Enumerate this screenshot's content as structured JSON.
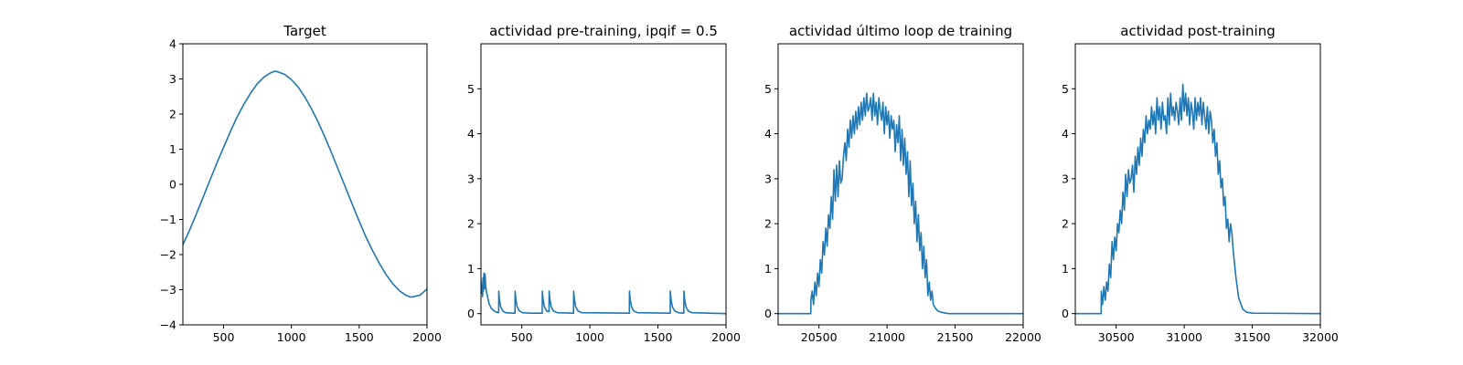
{
  "chart_data": [
    {
      "type": "line",
      "title": "Target",
      "xlim": [
        200,
        2000
      ],
      "ylim": [
        -4,
        4
      ],
      "xticks": [
        500,
        1000,
        1500,
        2000
      ],
      "yticks": [
        -4,
        -3,
        -2,
        -1,
        0,
        1,
        2,
        3,
        4
      ],
      "series": [
        {
          "color": "#1f77b4",
          "x": [
            200,
            250,
            300,
            350,
            400,
            450,
            500,
            550,
            600,
            650,
            700,
            750,
            800,
            850,
            880,
            900,
            950,
            1000,
            1050,
            1100,
            1150,
            1200,
            1250,
            1300,
            1350,
            1400,
            1450,
            1500,
            1550,
            1600,
            1650,
            1700,
            1750,
            1800,
            1850,
            1880,
            1900,
            1950,
            2000
          ],
          "y": [
            -1.72,
            -1.3,
            -0.84,
            -0.36,
            0.12,
            0.6,
            1.05,
            1.5,
            1.92,
            2.28,
            2.6,
            2.87,
            3.06,
            3.18,
            3.22,
            3.2,
            3.13,
            2.98,
            2.77,
            2.48,
            2.14,
            1.75,
            1.32,
            0.86,
            0.38,
            -0.1,
            -0.58,
            -1.05,
            -1.5,
            -1.9,
            -2.26,
            -2.58,
            -2.84,
            -3.04,
            -3.17,
            -3.21,
            -3.2,
            -3.15,
            -2.98
          ]
        }
      ]
    },
    {
      "type": "line",
      "title": "actividad pre-training, ipqif = 0.5",
      "xlim": [
        200,
        2000
      ],
      "ylim": [
        -0.25,
        6
      ],
      "xticks": [
        500,
        1000,
        1500,
        2000
      ],
      "yticks": [
        0,
        1,
        2,
        3,
        4,
        5
      ],
      "series": [
        {
          "color": "#1f77b4",
          "x": [
            200,
            205,
            208,
            212,
            215,
            218,
            222,
            226,
            230,
            235,
            240,
            250,
            260,
            275,
            300,
            330,
            331,
            335,
            345,
            360,
            380,
            430,
            450,
            451,
            456,
            466,
            482,
            505,
            560,
            650,
            651,
            656,
            666,
            682,
            700,
            701,
            706,
            716,
            732,
            760,
            880,
            881,
            886,
            896,
            912,
            940,
            1290,
            1291,
            1296,
            1306,
            1322,
            1350,
            1590,
            1591,
            1596,
            1606,
            1622,
            1650,
            1690,
            1691,
            1696,
            1706,
            1722,
            1750,
            2000
          ],
          "y": [
            0.75,
            0.45,
            0.65,
            0.38,
            0.8,
            0.5,
            0.9,
            0.55,
            0.88,
            0.6,
            0.5,
            0.35,
            0.22,
            0.12,
            0.05,
            0.02,
            0.5,
            0.32,
            0.15,
            0.06,
            0.02,
            0.01,
            0.01,
            0.5,
            0.32,
            0.15,
            0.06,
            0.02,
            0.01,
            0.01,
            0.5,
            0.32,
            0.15,
            0.06,
            0.04,
            0.5,
            0.32,
            0.15,
            0.06,
            0.02,
            0.01,
            0.5,
            0.32,
            0.15,
            0.06,
            0.02,
            0.01,
            0.5,
            0.32,
            0.15,
            0.06,
            0.02,
            0.01,
            0.5,
            0.32,
            0.15,
            0.06,
            0.02,
            0.01,
            0.5,
            0.32,
            0.15,
            0.06,
            0.02,
            0.0
          ]
        }
      ]
    },
    {
      "type": "line",
      "title": "actividad último loop de training",
      "xlim": [
        20200,
        22000
      ],
      "ylim": [
        -0.25,
        6
      ],
      "xticks": [
        20500,
        21000,
        21500,
        22000
      ],
      "yticks": [
        0,
        1,
        2,
        3,
        4,
        5
      ],
      "series": [
        {
          "color": "#1f77b4",
          "x": [
            20200,
            20440,
            20441,
            20450,
            20460,
            20470,
            20480,
            20490,
            20500,
            20510,
            20520,
            20530,
            20540,
            20550,
            20560,
            20570,
            20580,
            20590,
            20600,
            20610,
            20620,
            20630,
            20640,
            20650,
            20660,
            20670,
            20680,
            20690,
            20700,
            20710,
            20720,
            20730,
            20740,
            20750,
            20760,
            20770,
            20780,
            20790,
            20800,
            20810,
            20820,
            20830,
            20840,
            20850,
            20860,
            20870,
            20880,
            20890,
            20900,
            20910,
            20920,
            20930,
            20940,
            20950,
            20960,
            20970,
            20980,
            20990,
            21000,
            21010,
            21020,
            21030,
            21040,
            21050,
            21060,
            21070,
            21080,
            21090,
            21100,
            21110,
            21120,
            21130,
            21140,
            21150,
            21160,
            21170,
            21180,
            21190,
            21200,
            21210,
            21220,
            21230,
            21240,
            21250,
            21260,
            21270,
            21280,
            21290,
            21300,
            21310,
            21320,
            21330,
            21340,
            21350,
            21360,
            21370,
            21380,
            21400,
            21430,
            21460,
            21500,
            22000
          ],
          "y": [
            0.0,
            0.0,
            0.3,
            0.5,
            0.2,
            0.7,
            0.4,
            0.9,
            0.6,
            1.2,
            0.9,
            1.6,
            1.3,
            1.9,
            1.5,
            2.2,
            1.9,
            2.6,
            2.1,
            3.2,
            2.5,
            3.3,
            2.6,
            3.4,
            2.9,
            3.0,
            3.5,
            3.8,
            3.4,
            4.1,
            3.7,
            4.3,
            3.9,
            4.4,
            4.0,
            4.5,
            4.1,
            4.6,
            4.2,
            4.7,
            4.3,
            4.8,
            4.4,
            4.9,
            4.5,
            4.6,
            4.8,
            4.3,
            4.9,
            4.4,
            4.7,
            4.2,
            4.8,
            4.5,
            4.3,
            4.7,
            4.0,
            4.6,
            4.2,
            4.5,
            3.9,
            4.4,
            4.1,
            4.3,
            3.6,
            4.2,
            3.8,
            4.4,
            3.4,
            4.1,
            3.3,
            3.9,
            3.1,
            3.6,
            2.6,
            3.4,
            2.4,
            2.9,
            2.0,
            2.5,
            1.6,
            2.2,
            1.4,
            1.8,
            1.0,
            1.5,
            0.8,
            1.2,
            0.4,
            0.7,
            0.3,
            0.5,
            0.2,
            0.15,
            0.1,
            0.07,
            0.05,
            0.03,
            0.01,
            0.0,
            0.0,
            0.0
          ]
        }
      ]
    },
    {
      "type": "line",
      "title": "actividad post-training",
      "xlim": [
        30200,
        32000
      ],
      "ylim": [
        -0.25,
        6
      ],
      "xticks": [
        30500,
        31000,
        31500,
        32000
      ],
      "yticks": [
        0,
        1,
        2,
        3,
        4,
        5
      ],
      "series": [
        {
          "color": "#1f77b4",
          "x": [
            30200,
            30390,
            30391,
            30400,
            30410,
            30420,
            30430,
            30440,
            30450,
            30460,
            30470,
            30480,
            30490,
            30500,
            30510,
            30520,
            30530,
            30540,
            30550,
            30560,
            30570,
            30580,
            30590,
            30600,
            30610,
            30620,
            30630,
            30640,
            30650,
            30660,
            30670,
            30680,
            30690,
            30700,
            30710,
            30720,
            30730,
            30740,
            30750,
            30760,
            30770,
            30780,
            30790,
            30800,
            30810,
            30820,
            30830,
            30840,
            30850,
            30860,
            30870,
            30880,
            30890,
            30900,
            30910,
            30920,
            30930,
            30940,
            30950,
            30960,
            30970,
            30980,
            30990,
            31000,
            31010,
            31020,
            31030,
            31040,
            31050,
            31060,
            31070,
            31080,
            31090,
            31100,
            31110,
            31120,
            31130,
            31140,
            31150,
            31160,
            31170,
            31180,
            31190,
            31200,
            31210,
            31220,
            31230,
            31240,
            31250,
            31260,
            31270,
            31280,
            31290,
            31300,
            31310,
            31320,
            31330,
            31340,
            31350,
            31360,
            31380,
            31400,
            31430,
            31460,
            31500,
            32000
          ],
          "y": [
            0.0,
            0.0,
            0.5,
            0.2,
            0.6,
            0.3,
            0.7,
            0.5,
            1.1,
            0.8,
            1.6,
            1.2,
            1.7,
            1.4,
            2.0,
            1.8,
            2.3,
            2.0,
            2.7,
            2.3,
            3.1,
            2.6,
            3.2,
            2.9,
            3.0,
            3.3,
            2.7,
            3.5,
            3.1,
            3.7,
            3.3,
            3.9,
            3.5,
            4.1,
            3.8,
            4.4,
            4.0,
            4.3,
            4.1,
            4.6,
            4.2,
            4.5,
            4.0,
            4.8,
            4.3,
            4.6,
            4.1,
            4.7,
            4.3,
            4.4,
            4.0,
            4.8,
            4.2,
            4.9,
            4.4,
            4.6,
            4.3,
            4.7,
            4.5,
            4.2,
            4.8,
            4.3,
            5.1,
            4.5,
            4.9,
            4.4,
            4.8,
            4.2,
            4.7,
            4.5,
            4.1,
            4.8,
            4.3,
            4.7,
            4.4,
            4.8,
            4.2,
            4.7,
            4.4,
            4.1,
            4.6,
            4.0,
            4.5,
            4.3,
            3.8,
            4.1,
            3.5,
            3.8,
            3.1,
            3.4,
            2.8,
            3.0,
            2.4,
            2.6,
            1.9,
            2.1,
            1.6,
            2.0,
            1.8,
            1.4,
            0.8,
            0.35,
            0.1,
            0.03,
            0.01,
            0.0
          ]
        }
      ]
    }
  ]
}
